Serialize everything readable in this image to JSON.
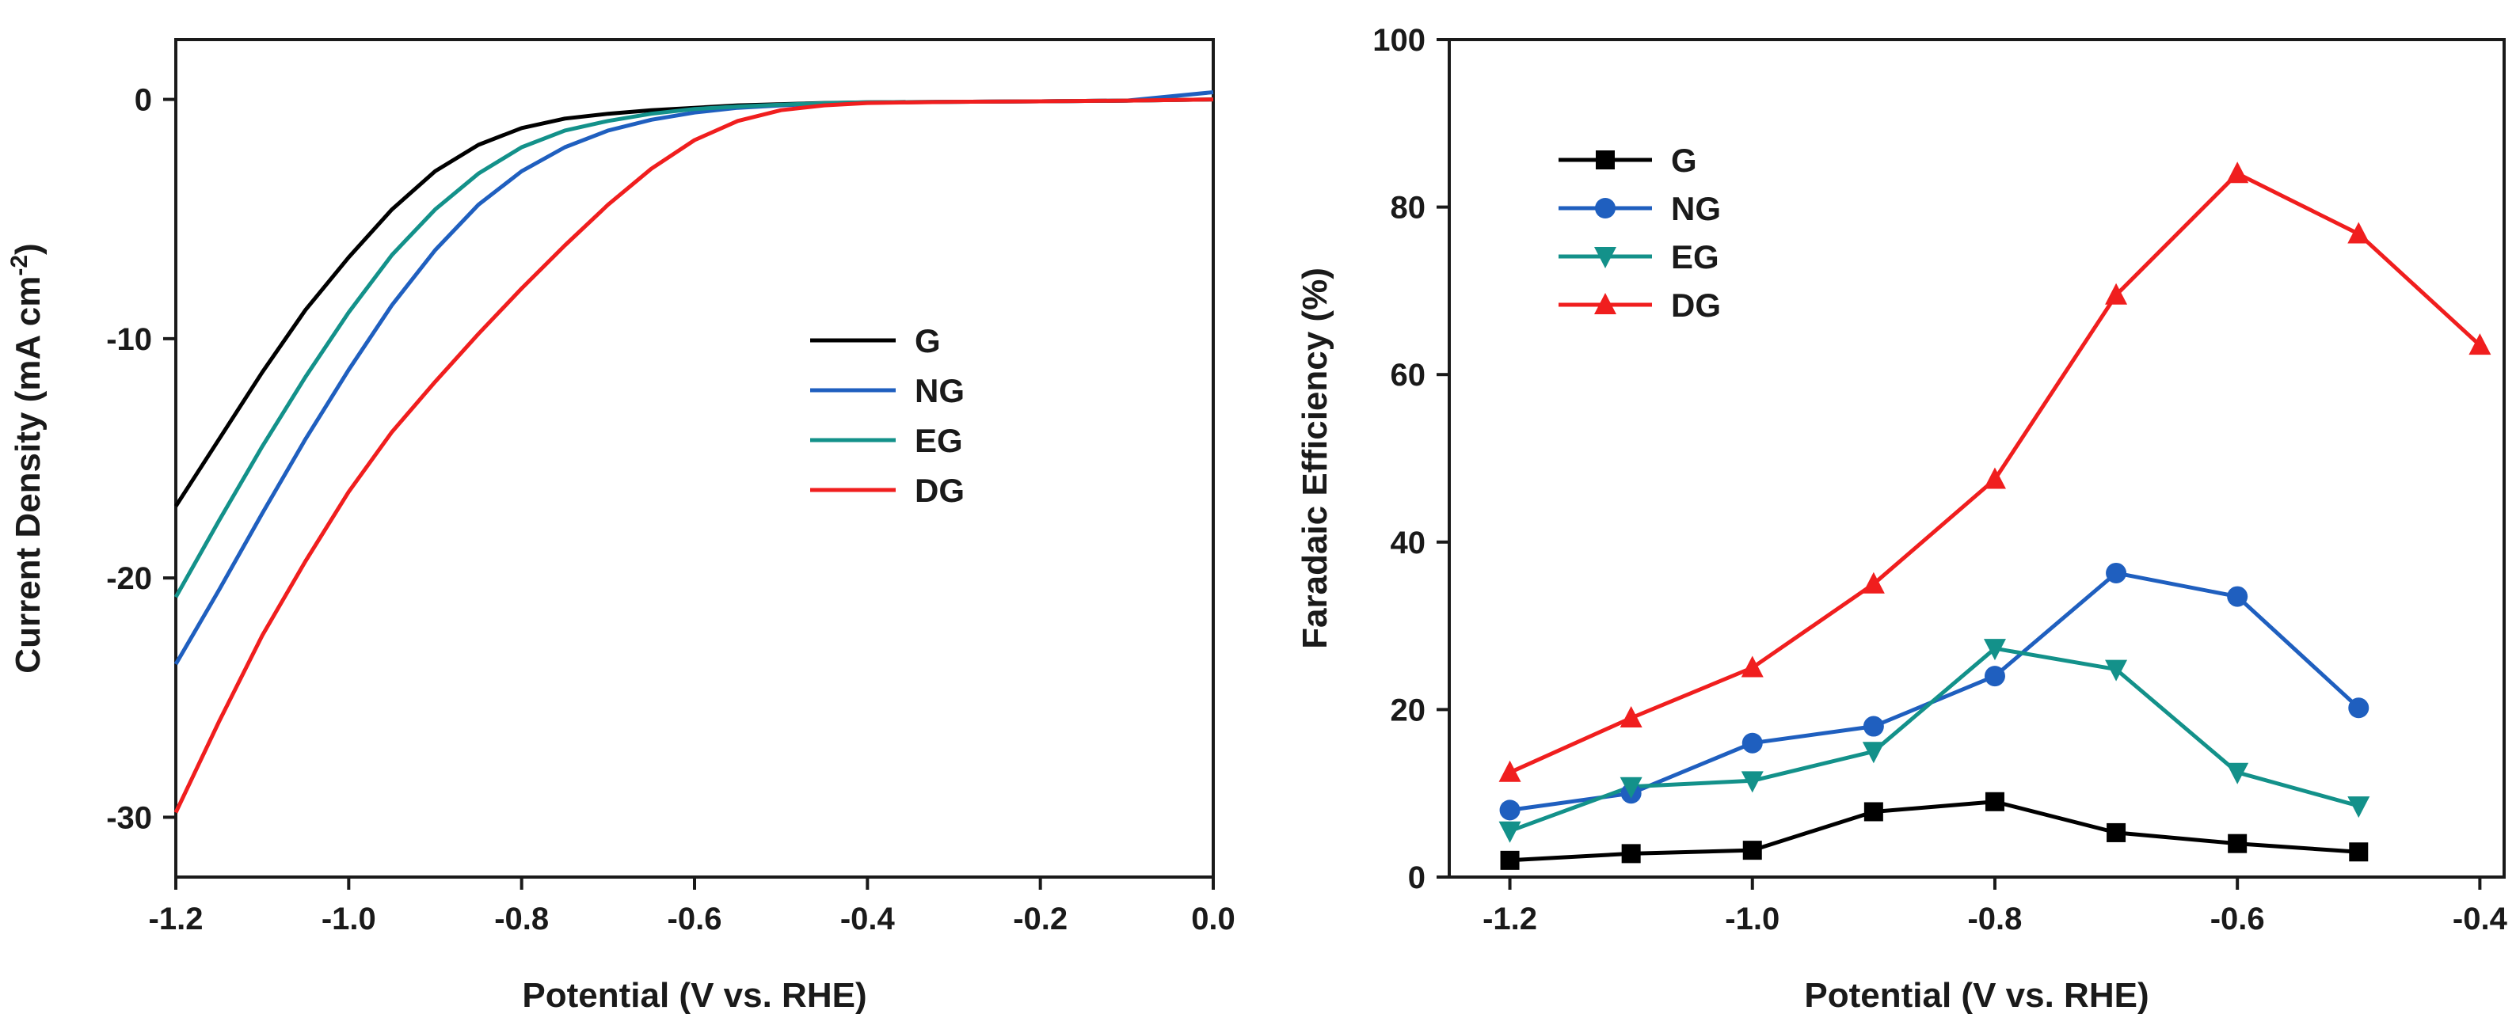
{
  "chart_data": [
    {
      "type": "line",
      "title": "",
      "xlabel": "Potential (V vs. RHE)",
      "ylabel_main": "Current Density (mA cm",
      "ylabel_sup": "-2",
      "ylabel_close": ")",
      "xlim": [
        -1.2,
        0.0
      ],
      "ylim": [
        -32.5,
        2.5
      ],
      "xticks": [
        -1.2,
        -1.0,
        -0.8,
        -0.6,
        -0.4,
        -0.2,
        0.0
      ],
      "xtick_labels": [
        "-1.2",
        "-1.0",
        "-0.8",
        "-0.6",
        "-0.4",
        "-0.2",
        "0.0"
      ],
      "yticks": [
        0,
        -10,
        -20,
        -30
      ],
      "ytick_labels": [
        "0",
        "-10",
        "-20",
        "-30"
      ],
      "legend_position": "center-right",
      "series": [
        {
          "name": "G",
          "color": "#000000",
          "x": [
            -1.2,
            -1.15,
            -1.1,
            -1.05,
            -1.0,
            -0.95,
            -0.9,
            -0.85,
            -0.8,
            -0.75,
            -0.7,
            -0.65,
            -0.6,
            -0.55,
            -0.5,
            -0.45,
            -0.4,
            -0.3,
            -0.2,
            -0.1,
            0.0
          ],
          "y": [
            -17.0,
            -14.2,
            -11.4,
            -8.8,
            -6.6,
            -4.6,
            -3.0,
            -1.9,
            -1.2,
            -0.8,
            -0.6,
            -0.45,
            -0.35,
            -0.25,
            -0.2,
            -0.15,
            -0.12,
            -0.1,
            -0.08,
            -0.05,
            0.0
          ]
        },
        {
          "name": "NG",
          "color": "#1f5fbf",
          "x": [
            -1.2,
            -1.15,
            -1.1,
            -1.05,
            -1.0,
            -0.95,
            -0.9,
            -0.85,
            -0.8,
            -0.75,
            -0.7,
            -0.65,
            -0.6,
            -0.55,
            -0.5,
            -0.45,
            -0.4,
            -0.3,
            -0.2,
            -0.1,
            0.0
          ],
          "y": [
            -23.6,
            -20.5,
            -17.3,
            -14.2,
            -11.3,
            -8.6,
            -6.3,
            -4.4,
            -3.0,
            -2.0,
            -1.3,
            -0.85,
            -0.55,
            -0.35,
            -0.25,
            -0.18,
            -0.14,
            -0.1,
            -0.08,
            -0.05,
            0.3
          ]
        },
        {
          "name": "EG",
          "color": "#13918a",
          "x": [
            -1.2,
            -1.15,
            -1.1,
            -1.05,
            -1.0,
            -0.95,
            -0.9,
            -0.85,
            -0.8,
            -0.75,
            -0.7,
            -0.65,
            -0.6,
            -0.55,
            -0.5,
            -0.45,
            -0.4,
            -0.3,
            -0.2,
            -0.1,
            0.0
          ],
          "y": [
            -20.8,
            -17.6,
            -14.5,
            -11.6,
            -8.9,
            -6.5,
            -4.6,
            -3.1,
            -2.0,
            -1.3,
            -0.9,
            -0.6,
            -0.4,
            -0.3,
            -0.22,
            -0.16,
            -0.12,
            -0.1,
            -0.08,
            -0.05,
            0.0
          ]
        },
        {
          "name": "DG",
          "color": "#f01e1e",
          "x": [
            -1.2,
            -1.15,
            -1.1,
            -1.05,
            -1.0,
            -0.95,
            -0.9,
            -0.85,
            -0.8,
            -0.75,
            -0.7,
            -0.65,
            -0.6,
            -0.55,
            -0.5,
            -0.45,
            -0.4,
            -0.3,
            -0.2,
            -0.1,
            0.0
          ],
          "y": [
            -29.8,
            -26.0,
            -22.4,
            -19.3,
            -16.4,
            -13.9,
            -11.8,
            -9.8,
            -7.9,
            -6.1,
            -4.4,
            -2.9,
            -1.7,
            -0.9,
            -0.45,
            -0.25,
            -0.15,
            -0.1,
            -0.08,
            -0.05,
            0.0
          ]
        }
      ]
    },
    {
      "type": "line",
      "title": "",
      "xlabel": "Potential (V vs. RHE)",
      "ylabel": "Faradaic Efficiency (%)",
      "xlim": [
        -1.25,
        -0.38
      ],
      "ylim": [
        0,
        100
      ],
      "xticks": [
        -1.2,
        -1.0,
        -0.8,
        -0.6,
        -0.4
      ],
      "xtick_labels": [
        "-1.2",
        "-1.0",
        "-0.8",
        "-0.6",
        "-0.4"
      ],
      "yticks": [
        0,
        20,
        40,
        60,
        80,
        100
      ],
      "ytick_labels": [
        "0",
        "20",
        "40",
        "60",
        "80",
        "100"
      ],
      "legend_position": "top-left",
      "series": [
        {
          "name": "G",
          "color": "#000000",
          "marker": "square",
          "x": [
            -1.2,
            -1.1,
            -1.0,
            -0.9,
            -0.8,
            -0.7,
            -0.6,
            -0.5
          ],
          "y": [
            2.0,
            2.8,
            3.2,
            7.8,
            9.0,
            5.3,
            4.0,
            3.0
          ]
        },
        {
          "name": "NG",
          "color": "#1f5fbf",
          "marker": "circle",
          "x": [
            -1.2,
            -1.1,
            -1.0,
            -0.9,
            -0.8,
            -0.7,
            -0.6,
            -0.5
          ],
          "y": [
            8.0,
            10.0,
            16.0,
            18.0,
            24.0,
            36.3,
            33.5,
            20.2
          ]
        },
        {
          "name": "EG",
          "color": "#13918a",
          "marker": "triangle-down",
          "x": [
            -1.2,
            -1.1,
            -1.0,
            -0.9,
            -0.8,
            -0.7,
            -0.6,
            -0.5
          ],
          "y": [
            5.5,
            10.8,
            11.5,
            15.0,
            27.3,
            24.8,
            12.5,
            8.5
          ]
        },
        {
          "name": "DG",
          "color": "#f01e1e",
          "marker": "triangle-up",
          "x": [
            -1.2,
            -1.1,
            -1.0,
            -0.9,
            -0.8,
            -0.7,
            -0.6,
            -0.5,
            -0.4
          ],
          "y": [
            12.5,
            19.0,
            25.0,
            35.0,
            47.5,
            69.5,
            84.0,
            76.8,
            63.5
          ]
        }
      ]
    }
  ]
}
